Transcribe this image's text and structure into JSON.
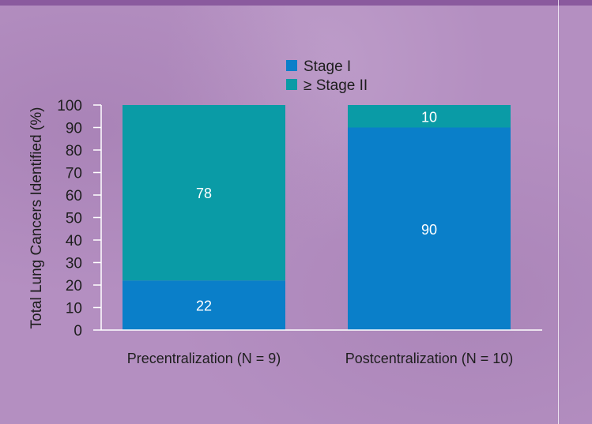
{
  "chart_data": {
    "type": "bar",
    "stacked": true,
    "title": "",
    "xlabel": "",
    "ylabel": "Total Lung Cancers Identified (%)",
    "ylim": [
      0,
      100
    ],
    "yticks": [
      0,
      10,
      20,
      30,
      40,
      50,
      60,
      70,
      80,
      90,
      100
    ],
    "categories": [
      "Precentralization (N = 9)",
      "Postcentralization (N = 10)"
    ],
    "series": [
      {
        "name": "Stage I",
        "values": [
          22,
          90
        ],
        "color": "#0a7fc9"
      },
      {
        "name": "≥ Stage II",
        "values": [
          78,
          10
        ],
        "color": "#0a9ba6"
      }
    ],
    "data_labels": true,
    "legend_position": "top-center",
    "grid": false
  },
  "colors": {
    "background": "#b48fc1",
    "axis": "#ffffff",
    "text": "#1e1e1e",
    "bar_label": "#ffffff"
  }
}
